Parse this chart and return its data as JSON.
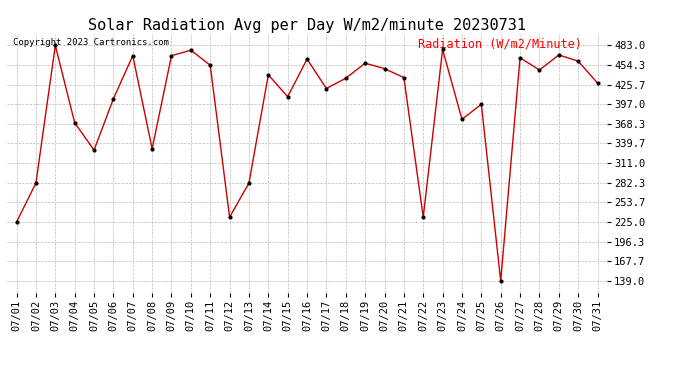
{
  "title": "Solar Radiation Avg per Day W/m2/minute 20230731",
  "copyright_text": "Copyright 2023 Cartronics.com",
  "legend_label": "Radiation (W/m2/Minute)",
  "dates": [
    "07/01",
    "07/02",
    "07/03",
    "07/04",
    "07/05",
    "07/06",
    "07/07",
    "07/08",
    "07/09",
    "07/10",
    "07/11",
    "07/12",
    "07/13",
    "07/14",
    "07/15",
    "07/16",
    "07/17",
    "07/18",
    "07/19",
    "07/20",
    "07/21",
    "07/22",
    "07/23",
    "07/24",
    "07/25",
    "07/26",
    "07/27",
    "07/28",
    "07/29",
    "07/30",
    "07/31"
  ],
  "values": [
    225,
    282,
    483,
    370,
    330,
    405,
    468,
    332,
    468,
    476,
    454,
    232,
    282,
    440,
    408,
    463,
    420,
    435,
    457,
    449,
    436,
    232,
    477,
    375,
    397,
    139,
    465,
    447,
    469,
    460,
    428
  ],
  "line_color": "#cc0000",
  "marker_color": "#000000",
  "background_color": "#ffffff",
  "grid_color": "#bbbbbb",
  "yticks": [
    139.0,
    167.7,
    196.3,
    225.0,
    253.7,
    282.3,
    311.0,
    339.7,
    368.3,
    397.0,
    425.7,
    454.3,
    483.0
  ],
  "ylim_min": 122,
  "ylim_max": 500,
  "title_fontsize": 11,
  "axis_fontsize": 7.5,
  "legend_fontsize": 8.5,
  "copyright_fontsize": 6.5
}
